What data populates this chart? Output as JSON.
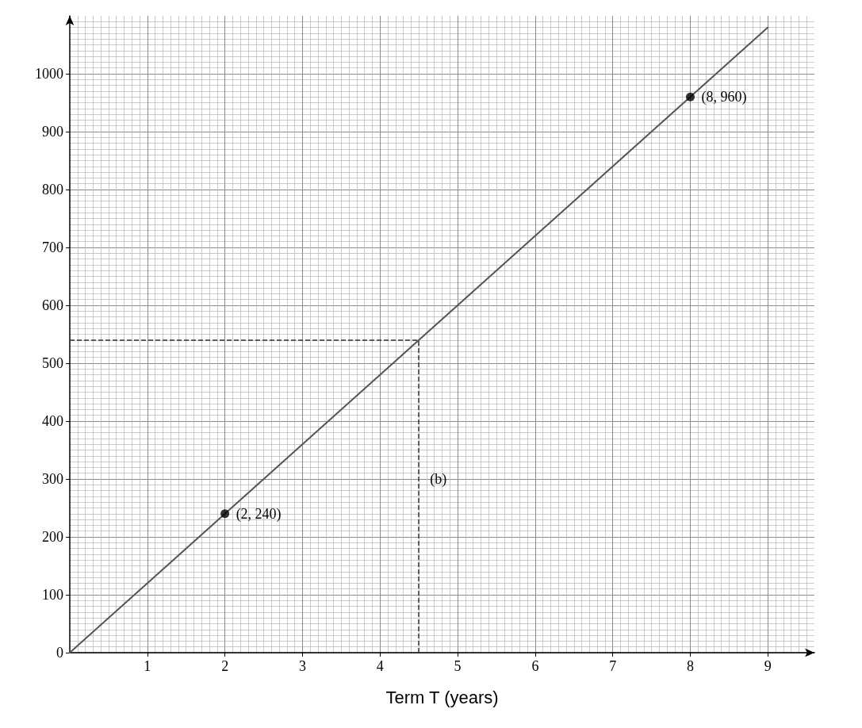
{
  "chart_data": {
    "type": "line",
    "xlabel": "Term T (years)",
    "xlim": [
      0,
      9.6
    ],
    "xticks": [
      1,
      2,
      3,
      4,
      5,
      6,
      7,
      8,
      9
    ],
    "ylim": [
      0,
      1100
    ],
    "yticks": [
      0,
      100,
      200,
      300,
      400,
      500,
      600,
      700,
      800,
      900,
      1000
    ],
    "grid": true,
    "marker": "none",
    "line_style": "solid",
    "series": [
      {
        "x": [
          0,
          9
        ],
        "values": [
          0,
          1080
        ],
        "color": "#555555"
      },
      {
        "type": "scatter",
        "x": [
          2,
          8
        ],
        "values": [
          240,
          960
        ],
        "color": "#000000",
        "marker": "circle"
      }
    ],
    "ref_lines": [
      {
        "axis": "x",
        "value": 4.5,
        "color": "#333333",
        "line_style": "dashed"
      },
      {
        "axis": "y",
        "value": 540,
        "color": "#333333",
        "line_style": "dashed"
      }
    ],
    "annotations": [
      {
        "text": "(2, 240)",
        "x": 2,
        "y": 240
      },
      {
        "text": "(8, 960)",
        "x": 8,
        "y": 960
      },
      {
        "text": "(b)",
        "x": 4.5,
        "y": 300
      }
    ]
  }
}
